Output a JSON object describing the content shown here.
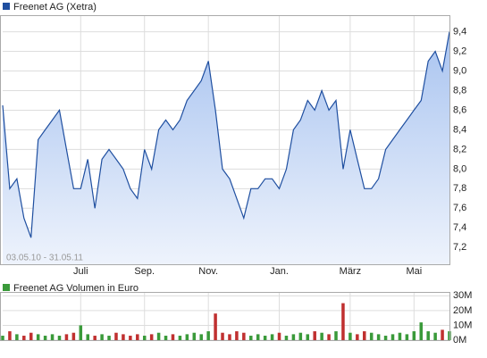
{
  "chart_data": [
    {
      "type": "line",
      "title": "Freenet AG (Xetra)",
      "subtitle": "03.05.10 - 31.05.11",
      "categories": [
        null,
        null,
        null,
        null,
        null,
        null,
        null,
        null,
        null,
        null,
        null,
        "Juli",
        null,
        null,
        null,
        null,
        null,
        null,
        null,
        null,
        "Sep.",
        null,
        null,
        null,
        null,
        null,
        null,
        null,
        null,
        "Nov.",
        null,
        null,
        null,
        null,
        null,
        null,
        null,
        null,
        null,
        "Jan.",
        null,
        null,
        null,
        null,
        null,
        null,
        null,
        null,
        null,
        "März",
        null,
        null,
        null,
        null,
        null,
        null,
        null,
        null,
        "Mai",
        null,
        null,
        null,
        null,
        null
      ],
      "series": [
        {
          "name": "Freenet AG (Xetra)",
          "color": "#1f4fa0",
          "values": [
            8.65,
            7.8,
            7.9,
            7.5,
            7.3,
            8.3,
            8.4,
            8.5,
            8.6,
            8.2,
            7.8,
            7.8,
            8.1,
            7.6,
            8.1,
            8.2,
            8.1,
            8.0,
            7.8,
            7.7,
            8.2,
            8.0,
            8.4,
            8.5,
            8.4,
            8.5,
            8.7,
            8.8,
            8.9,
            9.1,
            8.6,
            8.0,
            7.9,
            7.7,
            7.5,
            7.8,
            7.8,
            7.9,
            7.9,
            7.8,
            8.0,
            8.4,
            8.5,
            8.7,
            8.6,
            8.8,
            8.6,
            8.7,
            8.0,
            8.4,
            8.1,
            7.8,
            7.8,
            7.9,
            8.2,
            8.3,
            8.4,
            8.5,
            8.6,
            8.7,
            9.1,
            9.2,
            9.0,
            9.4
          ]
        }
      ],
      "ylim": [
        7.02,
        9.56
      ],
      "yticks": [
        {
          "value": 7.2,
          "label": "7,2"
        },
        {
          "value": 7.4,
          "label": "7,4"
        },
        {
          "value": 7.6,
          "label": "7,6"
        },
        {
          "value": 7.8,
          "label": "7,8"
        },
        {
          "value": 8.0,
          "label": "8,0"
        },
        {
          "value": 8.2,
          "label": "8,2"
        },
        {
          "value": 8.4,
          "label": "8,4"
        },
        {
          "value": 8.6,
          "label": "8,6"
        },
        {
          "value": 8.8,
          "label": "8,8"
        },
        {
          "value": 9.0,
          "label": "9,0"
        },
        {
          "value": 9.2,
          "label": "9,2"
        },
        {
          "value": 9.4,
          "label": "9,4"
        }
      ],
      "grid": true
    },
    {
      "type": "bar",
      "title": "Freenet AG Volumen in Euro",
      "series": [
        {
          "name": "Freenet AG Volumen in Euro",
          "color": "#3a9a3a",
          "values": [
            3,
            6,
            4,
            3,
            5,
            4,
            3,
            4,
            3,
            4,
            5,
            10,
            4,
            3,
            4,
            3,
            5,
            4,
            3,
            4,
            3,
            4,
            5,
            3,
            4,
            3,
            4,
            5,
            4,
            6,
            18,
            5,
            4,
            6,
            5,
            3,
            4,
            3,
            4,
            5,
            3,
            4,
            5,
            4,
            6,
            5,
            4,
            6,
            25,
            5,
            4,
            6,
            5,
            4,
            3,
            4,
            5,
            4,
            6,
            12,
            6,
            5,
            7,
            6
          ]
        }
      ],
      "down_color": "#c03030",
      "ylim": [
        0,
        32
      ],
      "yticks": [
        {
          "value": 0,
          "label": "0M"
        },
        {
          "value": 10,
          "label": "10M"
        },
        {
          "value": 20,
          "label": "20M"
        },
        {
          "value": 30,
          "label": "30M"
        }
      ],
      "grid": true
    }
  ]
}
